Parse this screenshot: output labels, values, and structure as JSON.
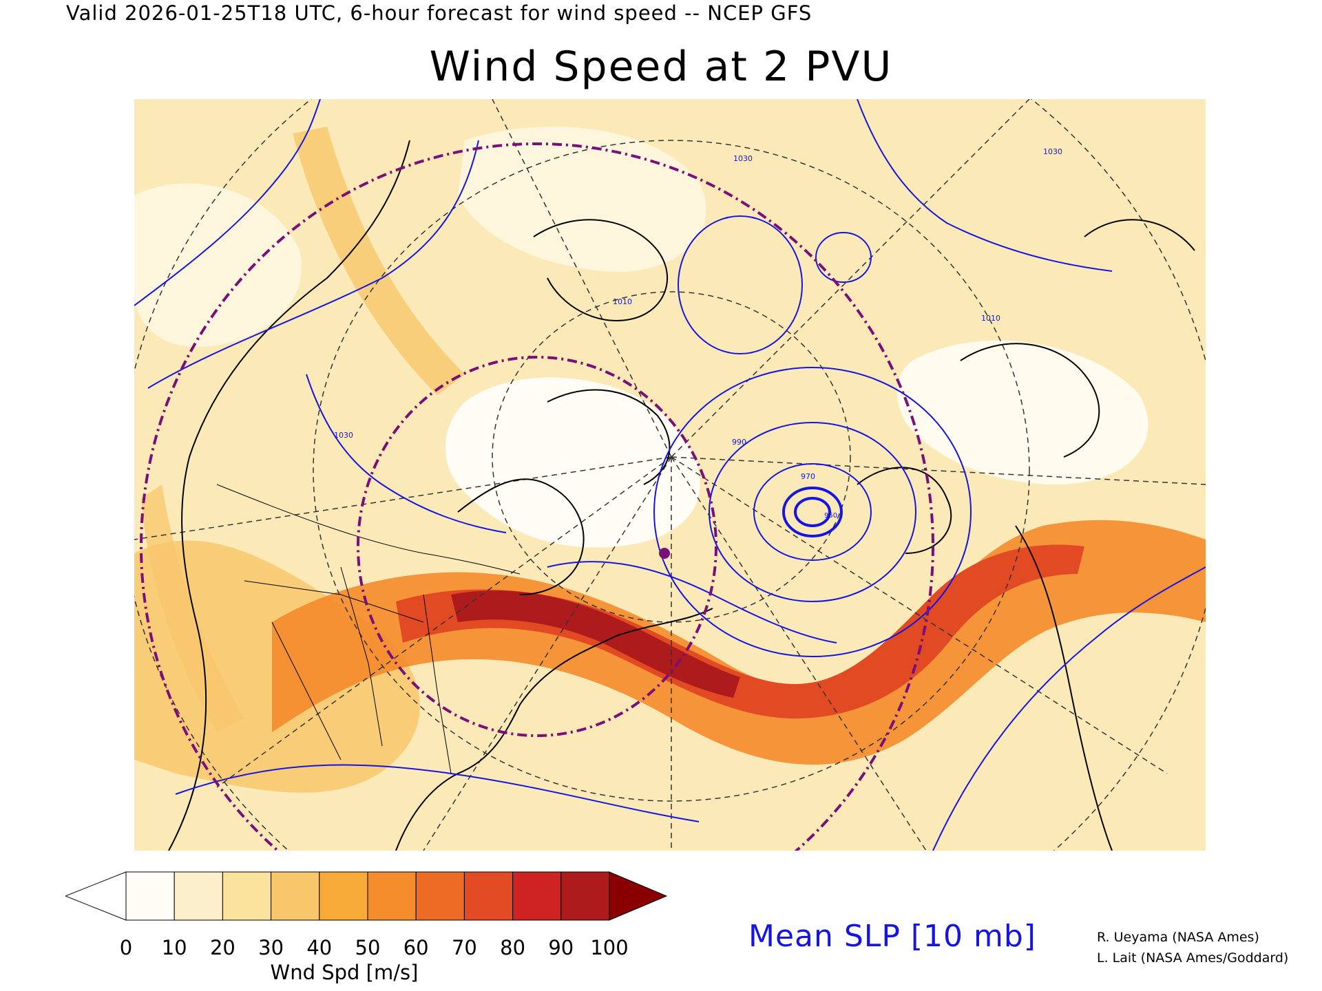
{
  "header": {
    "valid_line": "Valid 2026-01-25T18 UTC, 6-hour forecast for wind speed -- NCEP GFS",
    "title": "Wind Speed at 2 PVU"
  },
  "legend": {
    "unit_label": "Wnd Spd [m/s]",
    "ticks": [
      "0",
      "10",
      "20",
      "30",
      "40",
      "50",
      "60",
      "70",
      "80",
      "90",
      "100"
    ],
    "colors": [
      "#fffdf5",
      "#fcf0cc",
      "#f8e29c",
      "#f8c76b",
      "#f8aa38",
      "#f48c2c",
      "#ed6b25",
      "#e14a23",
      "#ce2223",
      "#ad1b1d",
      "#8a0000"
    ],
    "under_color": "#ffffff",
    "over_color": "#8a0000"
  },
  "contour_legend": {
    "label": "Mean SLP [10 mb]",
    "color": "#1414e6"
  },
  "credits": [
    "R. Ueyama (NASA Ames)",
    "L. Lait (NASA Ames/Goddard)"
  ],
  "map": {
    "background_color": "#fbe9b8",
    "jet_colors": [
      "#f8c76b",
      "#f48c2c",
      "#e14a23",
      "#ad1b1d"
    ],
    "isobar_color": "#1414e6",
    "range_ring_color": "#7a0f7a",
    "isobar_labels": [
      "970",
      "990",
      "1010",
      "1030",
      "1030",
      "1010",
      "1030",
      "950"
    ]
  }
}
